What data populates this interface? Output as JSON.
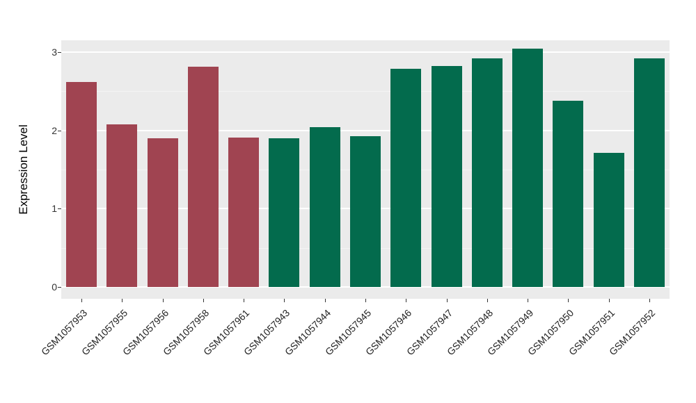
{
  "chart_data": {
    "type": "bar",
    "title": "",
    "xlabel": "",
    "ylabel": "Expression Level",
    "ylim": [
      0,
      3.15
    ],
    "yticks": [
      0,
      1,
      2,
      3
    ],
    "yticks_minor": [
      0.5,
      1.5,
      2.5
    ],
    "grid": true,
    "legend": "none",
    "panel_background": "#EBEBEB",
    "grid_major_color": "#FFFFFF",
    "grid_minor_color": "#F4F4F4",
    "group_colors": {
      "groupA": "#A04451",
      "groupB": "#036B4D"
    },
    "categories": [
      "GSM1057953",
      "GSM1057955",
      "GSM1057956",
      "GSM1057958",
      "GSM1057961",
      "GSM1057943",
      "GSM1057944",
      "GSM1057945",
      "GSM1057946",
      "GSM1057947",
      "GSM1057948",
      "GSM1057949",
      "GSM1057950",
      "GSM1057951",
      "GSM1057952"
    ],
    "values": [
      2.62,
      2.08,
      1.9,
      2.81,
      1.91,
      1.9,
      2.04,
      1.93,
      2.79,
      2.82,
      2.92,
      3.04,
      2.38,
      1.71,
      2.92
    ],
    "bar_groups": [
      "groupA",
      "groupA",
      "groupA",
      "groupA",
      "groupA",
      "groupB",
      "groupB",
      "groupB",
      "groupB",
      "groupB",
      "groupB",
      "groupB",
      "groupB",
      "groupB",
      "groupB"
    ]
  }
}
